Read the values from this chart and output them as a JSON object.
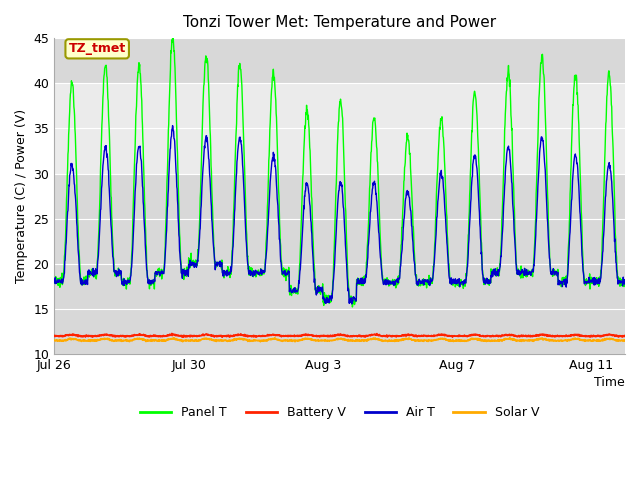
{
  "title": "Tonzi Tower Met: Temperature and Power",
  "xlabel": "Time",
  "ylabel": "Temperature (C) / Power (V)",
  "annotation": "TZ_tmet",
  "annotation_color": "#cc0000",
  "annotation_bg": "#ffffcc",
  "annotation_border": "#999900",
  "xlim_start": 0,
  "xlim_end": 17,
  "ylim": [
    10,
    45
  ],
  "yticks": [
    10,
    15,
    20,
    25,
    30,
    35,
    40,
    45
  ],
  "xtick_labels": [
    "Jul 26",
    "Jul 30",
    "Aug 3",
    "Aug 7",
    "Aug 11"
  ],
  "xtick_positions": [
    0,
    4,
    8,
    12,
    16
  ],
  "bg_color_dark": "#d8d8d8",
  "bg_color_light": "#ebebeb",
  "grid_color": "#ffffff",
  "panel_color": "#00ff00",
  "battery_color": "#ff2200",
  "air_color": "#0000cc",
  "solar_color": "#ffaa00",
  "legend_labels": [
    "Panel T",
    "Battery V",
    "Air T",
    "Solar V"
  ],
  "legend_colors": [
    "#00ff00",
    "#ff2200",
    "#0000cc",
    "#ffaa00"
  ]
}
